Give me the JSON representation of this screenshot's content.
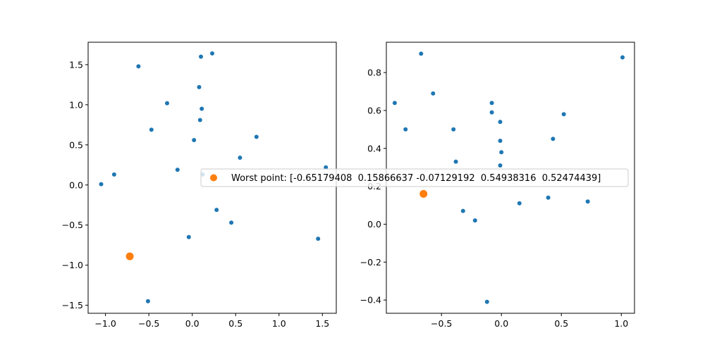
{
  "chart_data": [
    {
      "type": "scatter",
      "xlim": [
        -1.2,
        1.66
      ],
      "ylim": [
        -1.6,
        1.78
      ],
      "xticks": [
        -1.0,
        -0.5,
        0.0,
        0.5,
        1.0,
        1.5
      ],
      "xtick_labels": [
        "−1.0",
        "−0.5",
        "0.0",
        "0.5",
        "1.0",
        "1.5"
      ],
      "yticks": [
        -1.5,
        -1.0,
        -0.5,
        0.0,
        0.5,
        1.0,
        1.5
      ],
      "ytick_labels": [
        "−1.5",
        "−1.0",
        "−0.5",
        "0.0",
        "0.5",
        "1.0",
        "1.5"
      ],
      "grid": false,
      "series": [
        {
          "color": "#1f77b4",
          "points": [
            [
              -0.62,
              1.48
            ],
            [
              0.1,
              1.6
            ],
            [
              0.23,
              1.64
            ],
            [
              0.08,
              1.22
            ],
            [
              -0.29,
              1.02
            ],
            [
              0.11,
              0.95
            ],
            [
              0.09,
              0.81
            ],
            [
              -0.47,
              0.69
            ],
            [
              0.74,
              0.6
            ],
            [
              0.02,
              0.56
            ],
            [
              0.55,
              0.34
            ],
            [
              -0.17,
              0.19
            ],
            [
              -0.9,
              0.13
            ],
            [
              -1.05,
              0.01
            ],
            [
              1.54,
              0.22
            ],
            [
              0.12,
              0.13
            ],
            [
              0.28,
              -0.31
            ],
            [
              0.45,
              -0.47
            ],
            [
              -0.04,
              -0.65
            ],
            [
              1.45,
              -0.67
            ],
            [
              -0.51,
              -1.45
            ]
          ]
        },
        {
          "color": "#ff7f0e",
          "points": [
            [
              -0.72,
              -0.89
            ]
          ]
        }
      ]
    },
    {
      "type": "scatter",
      "xlim": [
        -0.96,
        1.11
      ],
      "ylim": [
        -0.47,
        0.96
      ],
      "xticks": [
        -0.5,
        0.0,
        0.5,
        1.0
      ],
      "xtick_labels": [
        "−0.5",
        "0.0",
        "0.5",
        "1.0"
      ],
      "yticks": [
        -0.4,
        -0.2,
        0.0,
        0.2,
        0.4,
        0.6,
        0.8
      ],
      "ytick_labels": [
        "−0.4",
        "−0.2",
        "0.0",
        "0.2",
        "0.4",
        "0.6",
        "0.8"
      ],
      "grid": false,
      "series": [
        {
          "color": "#1f77b4",
          "points": [
            [
              -0.67,
              0.9
            ],
            [
              1.01,
              0.88
            ],
            [
              -0.89,
              0.64
            ],
            [
              -0.57,
              0.69
            ],
            [
              -0.08,
              0.64
            ],
            [
              -0.08,
              0.59
            ],
            [
              -0.01,
              0.54
            ],
            [
              0.52,
              0.58
            ],
            [
              -0.8,
              0.5
            ],
            [
              -0.4,
              0.5
            ],
            [
              0.43,
              0.45
            ],
            [
              -0.01,
              0.44
            ],
            [
              0.0,
              0.38
            ],
            [
              -0.38,
              0.33
            ],
            [
              -0.01,
              0.31
            ],
            [
              0.39,
              0.14
            ],
            [
              0.72,
              0.12
            ],
            [
              0.15,
              0.11
            ],
            [
              -0.32,
              0.07
            ],
            [
              -0.22,
              0.02
            ],
            [
              -0.12,
              -0.41
            ]
          ]
        },
        {
          "color": "#ff7f0e",
          "points": [
            [
              -0.65,
              0.16
            ]
          ]
        }
      ]
    }
  ],
  "legend": {
    "placement": "center",
    "label": "Worst point: [-0.65179408  0.15866637 -0.07129192  0.54938316  0.52474439]",
    "color": "#ff7f0e"
  }
}
